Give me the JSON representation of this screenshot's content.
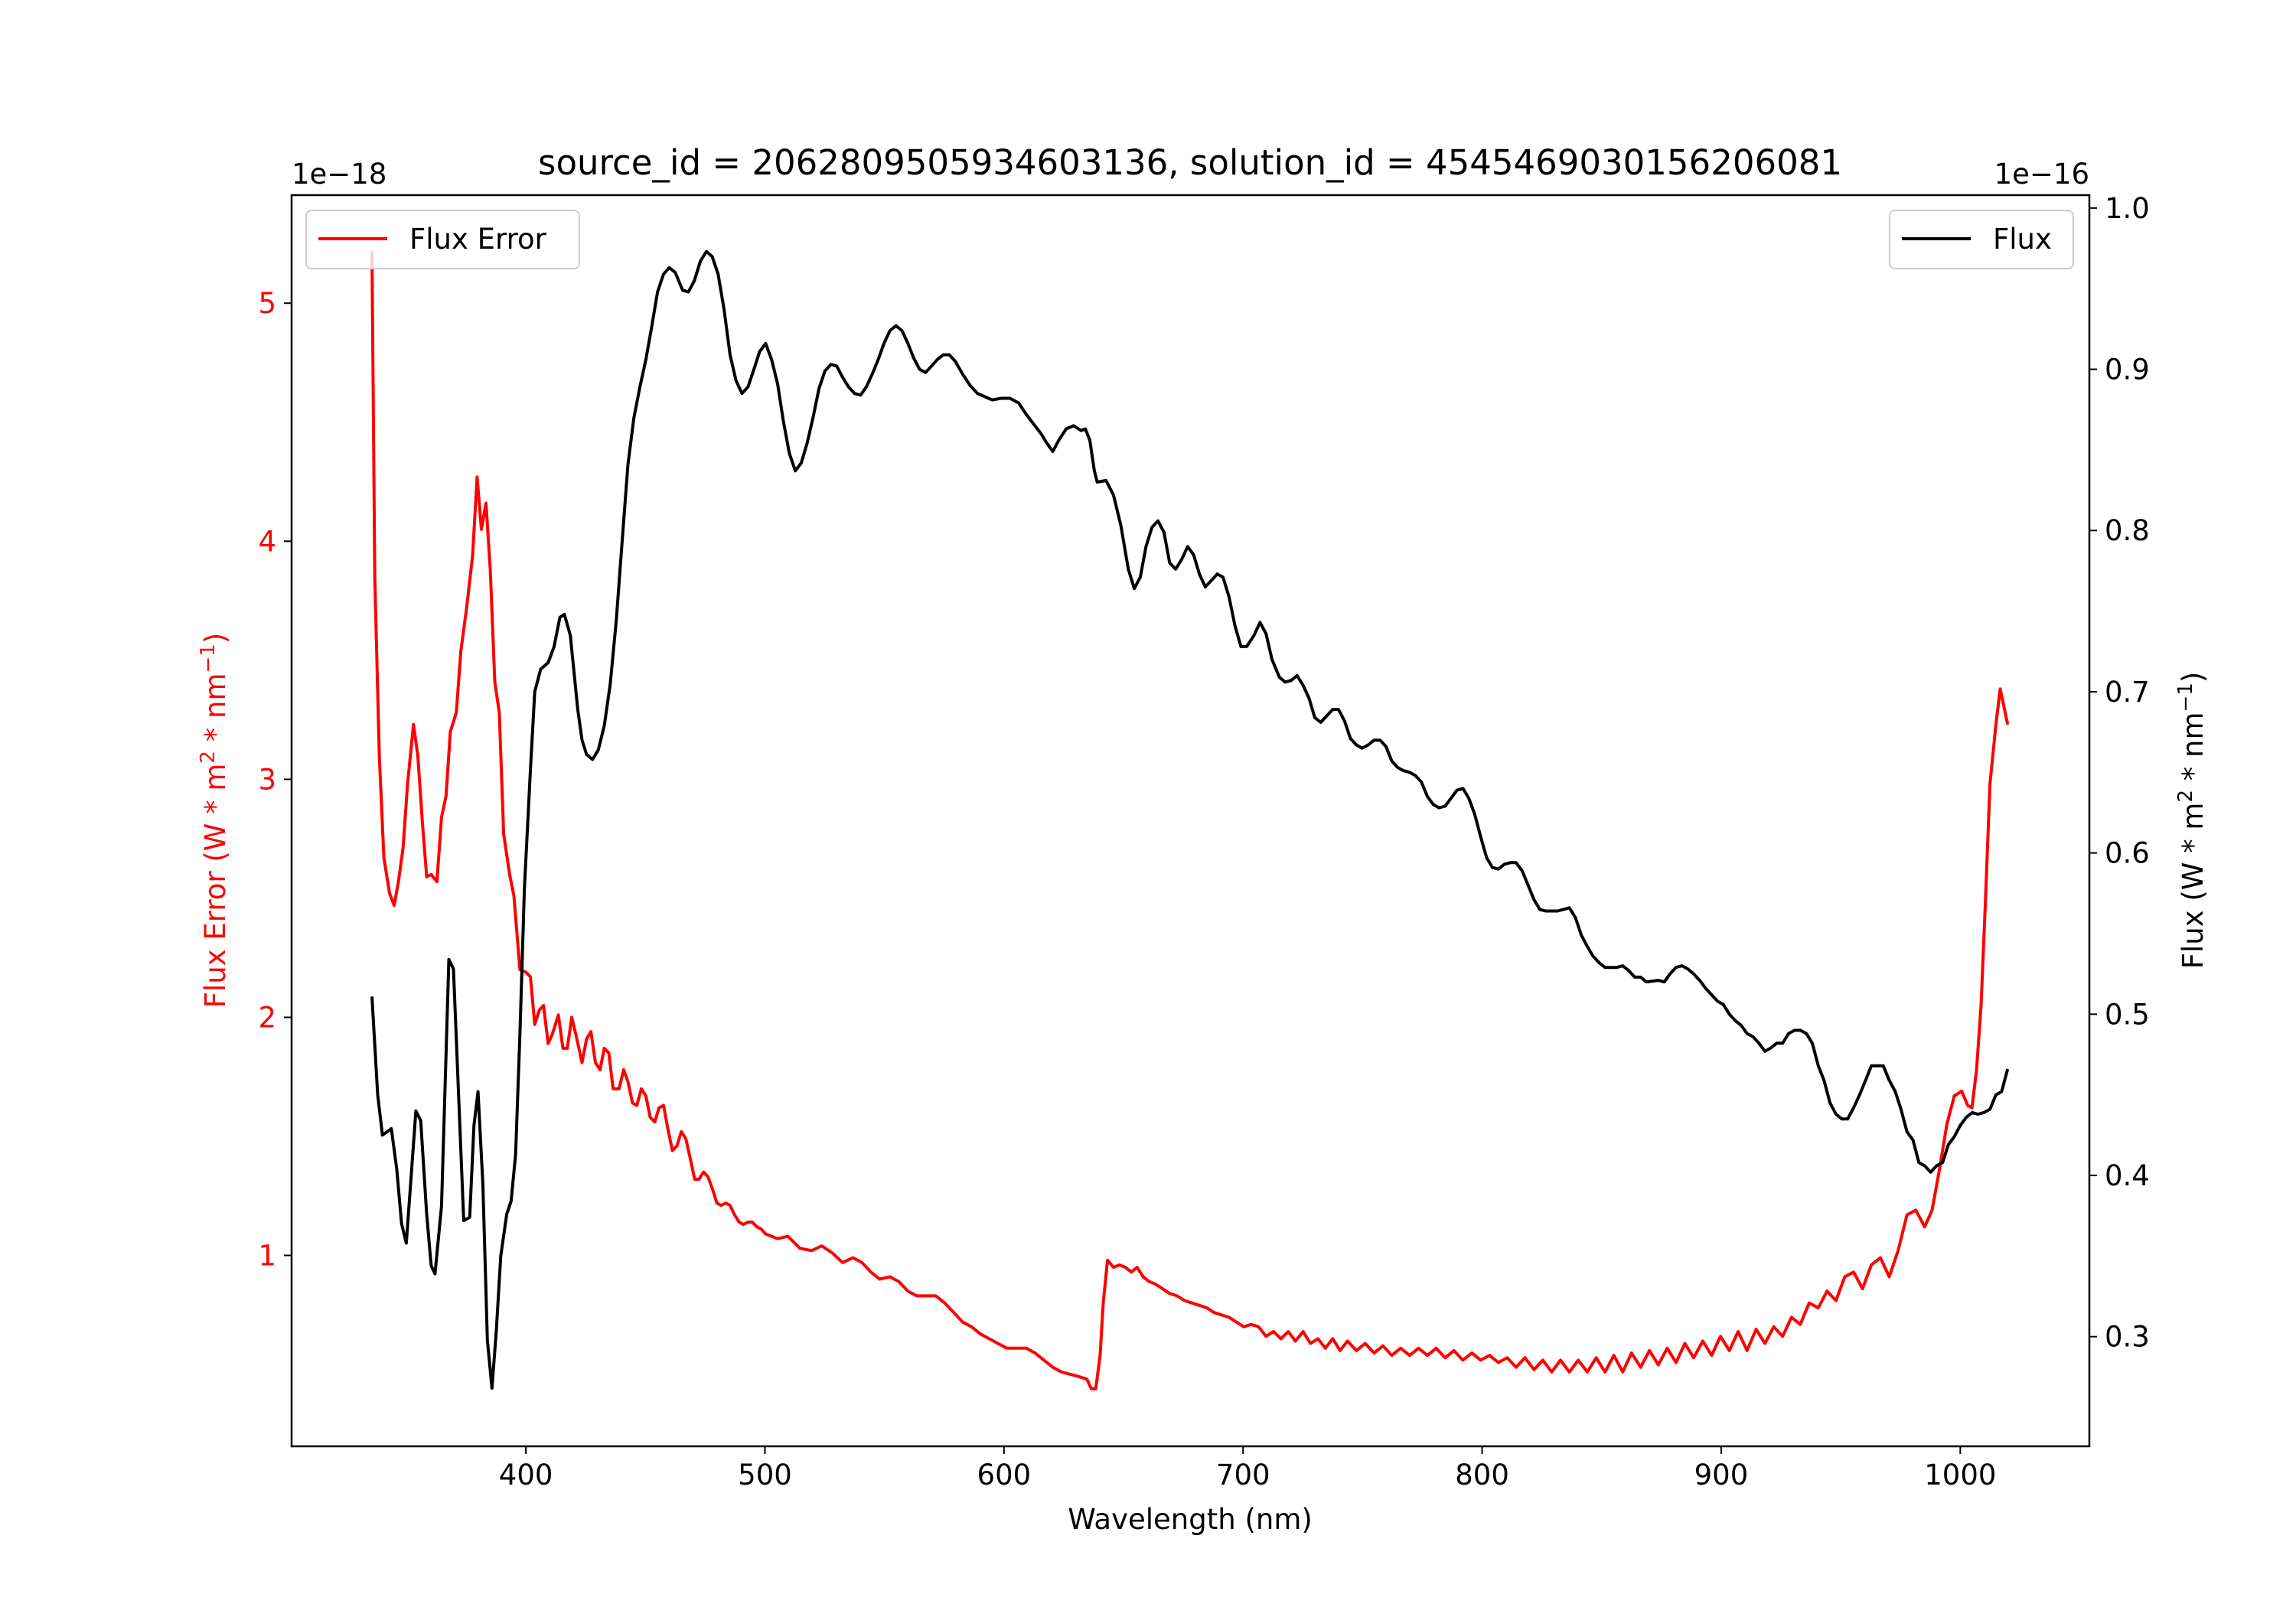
{
  "chart_data": {
    "type": "line",
    "title": "source_id = 2062809505934603136, solution_id = 4545469030156206081",
    "xlabel": "Wavelength (nm)",
    "xlim": [
      302,
      1054
    ],
    "xticks": [
      400,
      500,
      600,
      700,
      800,
      900,
      1000
    ],
    "left_axis": {
      "label_parts": [
        "Flux Error (W * m",
        "2",
        " * nm",
        "−1",
        ")"
      ],
      "offset_text": "1e−18",
      "ylim": [
        0.198,
        5.454
      ],
      "ticks": [
        1,
        2,
        3,
        4,
        5
      ],
      "color": "#ff0000"
    },
    "right_axis": {
      "label_parts": [
        "Flux (W * m",
        "2",
        " * nm",
        "−1",
        ")"
      ],
      "offset_text": "1e−16",
      "ylim": [
        0.232,
        1.008
      ],
      "ticks": [
        "0.3",
        "0.4",
        "0.5",
        "0.6",
        "0.7",
        "0.8",
        "0.9",
        "1.0"
      ],
      "color": "#000000"
    },
    "legend": [
      {
        "label": "Flux Error",
        "color": "#ff0000",
        "placement": "upper-left"
      },
      {
        "label": "Flux",
        "color": "#000000",
        "placement": "upper-right"
      }
    ],
    "series": [
      {
        "name": "Flux Error",
        "axis": "left",
        "color": "#ff0000",
        "x": [
          335.6,
          336.8,
          338.7,
          340.6,
          343.0,
          344.9,
          346.7,
          348.6,
          350.5,
          353.0,
          354.8,
          356.7,
          358.5,
          360.4,
          362.8,
          364.7,
          366.6,
          368.4,
          370.9,
          372.8,
          375.2,
          377.7,
          379.6,
          381.4,
          383.3,
          385.1,
          387.0,
          388.9,
          390.7,
          393.2,
          395.0,
          397.5,
          400.0,
          401.9,
          403.7,
          405.6,
          407.4,
          409.3,
          411.1,
          413.6,
          415.5,
          417.3,
          419.2,
          421.1,
          423.5,
          425.4,
          427.2,
          429.1,
          431.0,
          432.8,
          434.7,
          436.5,
          439.0,
          440.9,
          442.7,
          444.6,
          446.4,
          448.3,
          450.2,
          452.0,
          453.9,
          455.7,
          457.6,
          459.4,
          461.3,
          463.2,
          465.0,
          466.9,
          468.7,
          470.6,
          472.4,
          474.3,
          476.2,
          478.0,
          479.9,
          481.7,
          483.6,
          485.4,
          487.3,
          489.2,
          491.0,
          492.9,
          494.7,
          496.6,
          498.5,
          500.3,
          505.3,
          509.6,
          514.6,
          519.5,
          523.8,
          528.2,
          532.5,
          536.8,
          540.6,
          544.3,
          548.0,
          552.3,
          556.0,
          559.8,
          563.5,
          567.2,
          571.5,
          575.2,
          579.0,
          582.7,
          586.4,
          590.1,
          593.8,
          597.5,
          601.2,
          605.6,
          609.3,
          613.0,
          616.7,
          620.4,
          624.1,
          627.9,
          631.6,
          634.7,
          636.5,
          638.4,
          640.2,
          641.5,
          643.3,
          645.8,
          648.3,
          650.8,
          653.3,
          655.7,
          658.2,
          660.7,
          663.2,
          666.3,
          669.3,
          672.4,
          675.5,
          678.6,
          681.7,
          684.8,
          687.9,
          691.0,
          694.1,
          697.2,
          700.3,
          703.4,
          706.5,
          709.6,
          712.7,
          715.8,
          718.9,
          721.9,
          725.1,
          728.2,
          731.3,
          734.4,
          737.5,
          740.6,
          743.7,
          747.4,
          751.1,
          754.8,
          758.5,
          762.2,
          765.9,
          769.7,
          773.4,
          777.1,
          780.8,
          784.5,
          788.2,
          791.9,
          795.7,
          799.4,
          803.1,
          806.8,
          810.5,
          814.2,
          817.9,
          821.7,
          825.4,
          829.1,
          832.8,
          836.5,
          840.2,
          844.0,
          847.7,
          851.4,
          855.1,
          858.8,
          862.5,
          866.3,
          870.0,
          873.7,
          877.4,
          881.1,
          884.8,
          888.5,
          892.3,
          896.0,
          899.7,
          903.4,
          907.1,
          910.8,
          914.6,
          918.3,
          922.0,
          925.7,
          929.4,
          933.1,
          936.8,
          940.6,
          944.3,
          948.0,
          951.7,
          955.4,
          959.1,
          962.8,
          966.6,
          970.3,
          974.0,
          977.7,
          981.4,
          985.1,
          988.2,
          991.3,
          994.4,
          997.5,
          1000.6,
          1003.1,
          1004.9,
          1006.8,
          1008.7,
          1010.5,
          1012.4,
          1014.9,
          1016.7,
          1018.6,
          1019.8
        ],
        "y": [
          5.22,
          3.85,
          3.1,
          2.67,
          2.52,
          2.47,
          2.57,
          2.71,
          2.98,
          3.23,
          3.1,
          2.82,
          2.59,
          2.6,
          2.57,
          2.84,
          2.93,
          3.2,
          3.28,
          3.54,
          3.72,
          3.94,
          4.27,
          4.05,
          4.16,
          3.88,
          3.41,
          3.28,
          2.77,
          2.6,
          2.51,
          2.2,
          2.19,
          2.17,
          1.97,
          2.03,
          2.05,
          1.89,
          1.93,
          2.01,
          1.87,
          1.87,
          2.0,
          1.92,
          1.81,
          1.91,
          1.94,
          1.81,
          1.78,
          1.87,
          1.85,
          1.7,
          1.7,
          1.78,
          1.73,
          1.64,
          1.63,
          1.7,
          1.67,
          1.58,
          1.56,
          1.62,
          1.63,
          1.53,
          1.44,
          1.46,
          1.52,
          1.49,
          1.41,
          1.32,
          1.32,
          1.35,
          1.33,
          1.28,
          1.22,
          1.21,
          1.22,
          1.21,
          1.17,
          1.14,
          1.13,
          1.14,
          1.14,
          1.12,
          1.11,
          1.09,
          1.07,
          1.08,
          1.03,
          1.02,
          1.04,
          1.01,
          0.97,
          0.99,
          0.97,
          0.93,
          0.9,
          0.91,
          0.89,
          0.85,
          0.83,
          0.83,
          0.83,
          0.8,
          0.76,
          0.72,
          0.7,
          0.67,
          0.65,
          0.63,
          0.61,
          0.61,
          0.61,
          0.59,
          0.56,
          0.53,
          0.51,
          0.5,
          0.49,
          0.48,
          0.44,
          0.44,
          0.58,
          0.8,
          0.98,
          0.95,
          0.96,
          0.95,
          0.93,
          0.95,
          0.91,
          0.89,
          0.88,
          0.86,
          0.84,
          0.83,
          0.81,
          0.8,
          0.79,
          0.78,
          0.76,
          0.75,
          0.74,
          0.72,
          0.7,
          0.71,
          0.7,
          0.66,
          0.68,
          0.65,
          0.68,
          0.64,
          0.68,
          0.63,
          0.65,
          0.61,
          0.65,
          0.6,
          0.64,
          0.6,
          0.63,
          0.59,
          0.62,
          0.58,
          0.61,
          0.58,
          0.61,
          0.58,
          0.61,
          0.57,
          0.6,
          0.56,
          0.59,
          0.56,
          0.58,
          0.55,
          0.57,
          0.53,
          0.57,
          0.52,
          0.56,
          0.51,
          0.56,
          0.51,
          0.56,
          0.51,
          0.57,
          0.51,
          0.58,
          0.51,
          0.59,
          0.53,
          0.6,
          0.54,
          0.61,
          0.55,
          0.63,
          0.57,
          0.64,
          0.58,
          0.66,
          0.6,
          0.68,
          0.6,
          0.69,
          0.63,
          0.7,
          0.66,
          0.74,
          0.71,
          0.8,
          0.78,
          0.85,
          0.81,
          0.91,
          0.93,
          0.86,
          0.96,
          0.99,
          0.91,
          1.02,
          1.17,
          1.19,
          1.12,
          1.19,
          1.36,
          1.55,
          1.67,
          1.69,
          1.63,
          1.62,
          1.78,
          2.05,
          2.48,
          2.98,
          3.23,
          3.38,
          3.29,
          3.23
        ]
      },
      {
        "name": "Flux",
        "axis": "right",
        "color": "#000000",
        "x": [
          335.6,
          338,
          340,
          343.7,
          346,
          348,
          350,
          354,
          356,
          358.5,
          360.4,
          362,
          364.7,
          367.8,
          369.7,
          374,
          376.5,
          378.3,
          380,
          382,
          383.9,
          385.8,
          387.6,
          389.5,
          392,
          393.8,
          395.7,
          397.5,
          399.4,
          401.9,
          403.7,
          406.2,
          409.3,
          411.8,
          414.2,
          416.1,
          418.6,
          421.7,
          423.5,
          425.4,
          427.9,
          430.3,
          432.8,
          435.3,
          437.8,
          440.2,
          442.7,
          445.2,
          447.7,
          450.2,
          452.6,
          455.1,
          457.6,
          460,
          462.5,
          465.6,
          468,
          470.5,
          473,
          475.5,
          477.9,
          480.4,
          482.9,
          485.4,
          487.9,
          490.4,
          492.9,
          495.4,
          497.8,
          500.3,
          502.8,
          505.3,
          507.7,
          510.2,
          512.7,
          515.2,
          517.6,
          520.1,
          522.6,
          525.1,
          527.6,
          530,
          532.5,
          535,
          537.5,
          540,
          542.4,
          544.9,
          547.4,
          549.8,
          552.3,
          554.8,
          557.3,
          559.8,
          562.2,
          564.7,
          567.2,
          569.7,
          572.1,
          574.6,
          577.1,
          579.6,
          582.7,
          585.8,
          588.9,
          592,
          595,
          598.8,
          602.5,
          606.2,
          609.3,
          612.4,
          615.5,
          618,
          620.4,
          622.9,
          626,
          629.1,
          632.2,
          634,
          635.9,
          637.8,
          639.0,
          642.7,
          645.8,
          648.9,
          652.0,
          654.5,
          657.0,
          659.4,
          661.9,
          664.4,
          666.9,
          669.3,
          671.8,
          674.3,
          676.8,
          679.3,
          681.7,
          684.2,
          686.7,
          689.2,
          691.6,
          694.1,
          696.6,
          699.1,
          701.5,
          704.6,
          707.1,
          709.6,
          712.1,
          715.2,
          717.6,
          720.1,
          722.6,
          725.1,
          727.6,
          730.0,
          732.5,
          735.0,
          737.5,
          739.9,
          742.4,
          744.9,
          747.4,
          749.8,
          752.3,
          754.8,
          757.3,
          759.8,
          762.2,
          764.7,
          767.2,
          769.7,
          772.1,
          774.6,
          777.1,
          779.6,
          782.0,
          784.5,
          787.0,
          789.5,
          792.0,
          794.4,
          796.9,
          799.4,
          801.9,
          804.3,
          806.8,
          809.3,
          811.8,
          814.2,
          816.7,
          819.2,
          821.7,
          824.1,
          826.6,
          831.6,
          836.5,
          839.0,
          841.5,
          844.0,
          846.4,
          848.9,
          851.4,
          856.3,
          858.8,
          861.3,
          863.8,
          866.3,
          868.7,
          873.7,
          876.2,
          878.6,
          881.1,
          883.6,
          886.1,
          888.5,
          891.0,
          893.5,
          896.0,
          898.5,
          900.9,
          903.4,
          905.9,
          908.4,
          910.8,
          913.3,
          915.8,
          918.3,
          920.7,
          923.2,
          925.7,
          928.2,
          930.7,
          933.1,
          935.6,
          938.1,
          940.6,
          943.0,
          945.5,
          948.0,
          950.5,
          952.9,
          955.4,
          957.9,
          960.4,
          962.8,
          967.8,
          970.3,
          972.8,
          975.2,
          977.7,
          980.2,
          982.7,
          985.1,
          987.6,
          990.1,
          992.6,
          995.0,
          997.5,
          1000.0,
          1002.5,
          1005.0,
          1007.4,
          1009.9,
          1012.4,
          1014.9,
          1017.3,
          1019.8
        ],
        "y": [
          0.511,
          0.45,
          0.425,
          0.429,
          0.404,
          0.37,
          0.358,
          0.44,
          0.434,
          0.376,
          0.344,
          0.339,
          0.381,
          0.534,
          0.528,
          0.372,
          0.374,
          0.431,
          0.452,
          0.395,
          0.298,
          0.268,
          0.303,
          0.35,
          0.376,
          0.384,
          0.413,
          0.487,
          0.578,
          0.652,
          0.7,
          0.714,
          0.718,
          0.728,
          0.746,
          0.748,
          0.735,
          0.689,
          0.67,
          0.661,
          0.658,
          0.664,
          0.679,
          0.705,
          0.744,
          0.792,
          0.841,
          0.87,
          0.889,
          0.906,
          0.926,
          0.948,
          0.959,
          0.963,
          0.96,
          0.949,
          0.948,
          0.955,
          0.967,
          0.973,
          0.97,
          0.959,
          0.937,
          0.909,
          0.893,
          0.885,
          0.889,
          0.9,
          0.911,
          0.916,
          0.906,
          0.891,
          0.868,
          0.848,
          0.837,
          0.842,
          0.854,
          0.87,
          0.888,
          0.899,
          0.903,
          0.902,
          0.895,
          0.889,
          0.885,
          0.884,
          0.889,
          0.897,
          0.906,
          0.916,
          0.924,
          0.927,
          0.924,
          0.916,
          0.907,
          0.9,
          0.898,
          0.902,
          0.906,
          0.909,
          0.909,
          0.905,
          0.897,
          0.89,
          0.885,
          0.883,
          0.881,
          0.882,
          0.882,
          0.879,
          0.872,
          0.866,
          0.86,
          0.854,
          0.849,
          0.856,
          0.863,
          0.865,
          0.862,
          0.863,
          0.856,
          0.837,
          0.83,
          0.831,
          0.822,
          0.803,
          0.776,
          0.764,
          0.771,
          0.79,
          0.802,
          0.806,
          0.799,
          0.78,
          0.776,
          0.782,
          0.79,
          0.785,
          0.773,
          0.765,
          0.769,
          0.773,
          0.771,
          0.759,
          0.741,
          0.728,
          0.728,
          0.735,
          0.743,
          0.736,
          0.72,
          0.709,
          0.706,
          0.707,
          0.71,
          0.704,
          0.696,
          0.684,
          0.681,
          0.685,
          0.689,
          0.689,
          0.682,
          0.671,
          0.667,
          0.665,
          0.667,
          0.67,
          0.67,
          0.666,
          0.657,
          0.653,
          0.651,
          0.65,
          0.648,
          0.644,
          0.635,
          0.63,
          0.628,
          0.629,
          0.634,
          0.639,
          0.64,
          0.634,
          0.624,
          0.61,
          0.597,
          0.591,
          0.59,
          0.593,
          0.594,
          0.594,
          0.589,
          0.58,
          0.571,
          0.565,
          0.564,
          0.564,
          0.566,
          0.56,
          0.549,
          0.542,
          0.536,
          0.532,
          0.529,
          0.529,
          0.53,
          0.527,
          0.523,
          0.523,
          0.52,
          0.521,
          0.52,
          0.525,
          0.529,
          0.53,
          0.528,
          0.525,
          0.521,
          0.516,
          0.512,
          0.508,
          0.506,
          0.5,
          0.496,
          0.493,
          0.488,
          0.486,
          0.482,
          0.477,
          0.479,
          0.482,
          0.482,
          0.488,
          0.49,
          0.49,
          0.488,
          0.482,
          0.468,
          0.459,
          0.445,
          0.438,
          0.435,
          0.435,
          0.442,
          0.45,
          0.459,
          0.468,
          0.468,
          0.459,
          0.452,
          0.441,
          0.427,
          0.422,
          0.408,
          0.406,
          0.402,
          0.406,
          0.408,
          0.419,
          0.424,
          0.431,
          0.436,
          0.439,
          0.438,
          0.439,
          0.441,
          0.45,
          0.452,
          0.466
        ]
      }
    ]
  }
}
